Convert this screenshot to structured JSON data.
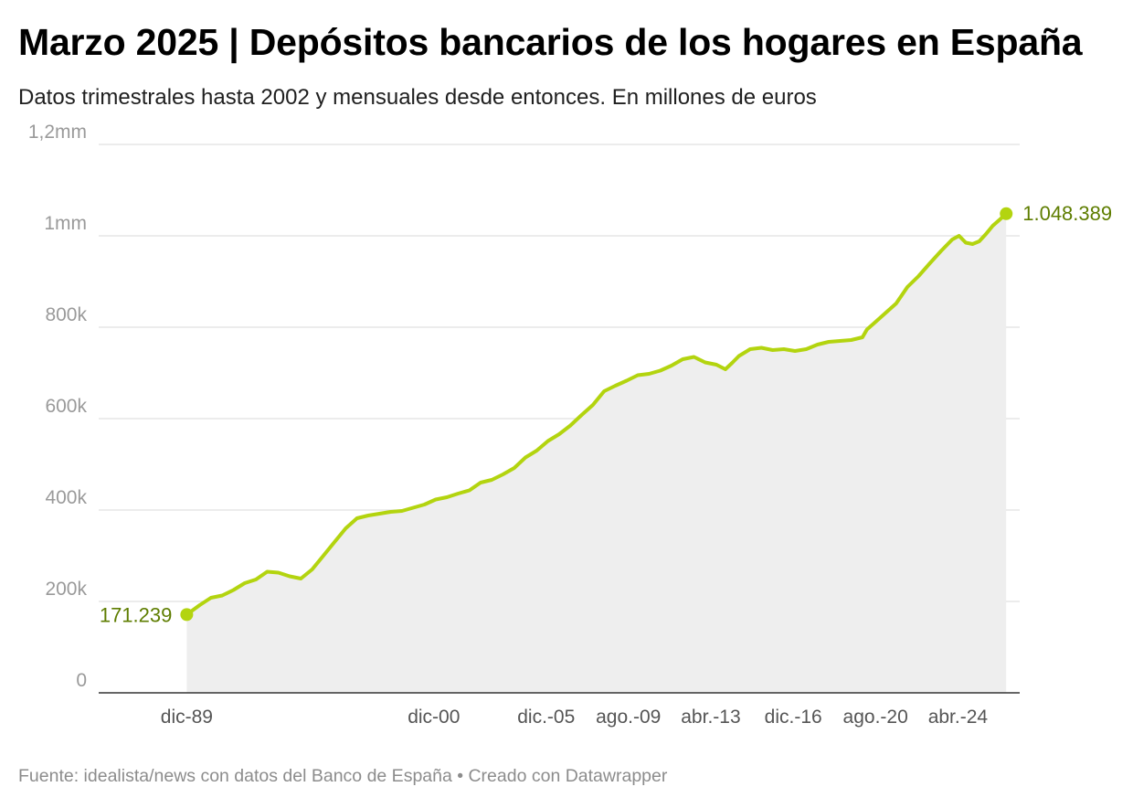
{
  "title": "Marzo 2025 | Depósitos bancarios de los hogares en España",
  "subtitle": "Datos trimestrales hasta 2002 y mensuales desde entonces. En millones de euros",
  "source": "Fuente: idealista/news con datos del Banco de España • Creado con Datawrapper",
  "colors": {
    "line": "#b3d40f",
    "area": "#eeeeee",
    "label": "#5e7d00",
    "grid": "#e0e0e0"
  },
  "chart_data": {
    "type": "area",
    "title": "Marzo 2025 | Depósitos bancarios de los hogares en España",
    "unit": "millones de euros",
    "ylim": [
      0,
      1200000
    ],
    "y_ticks": [
      {
        "value": 0,
        "label": "0"
      },
      {
        "value": 200000,
        "label": "200k"
      },
      {
        "value": 400000,
        "label": "400k"
      },
      {
        "value": 600000,
        "label": "600k"
      },
      {
        "value": 800000,
        "label": "800k"
      },
      {
        "value": 1000000,
        "label": "1mm"
      },
      {
        "value": 1200000,
        "label": "1,2mm"
      }
    ],
    "x_ticks": [
      {
        "x": 1989.92,
        "label": "dic-89"
      },
      {
        "x": 2000.92,
        "label": "dic-00"
      },
      {
        "x": 2005.92,
        "label": "dic.-05"
      },
      {
        "x": 2009.58,
        "label": "ago.-09"
      },
      {
        "x": 2013.25,
        "label": "abr.-13"
      },
      {
        "x": 2016.92,
        "label": "dic.-16"
      },
      {
        "x": 2020.58,
        "label": "ago.-20"
      },
      {
        "x": 2024.25,
        "label": "abr.-24"
      }
    ],
    "grid": true,
    "start_label": "171.239",
    "end_label": "1.048.389",
    "series": [
      {
        "values": [
          [
            1989.92,
            171239
          ],
          [
            1990.5,
            192000
          ],
          [
            1991.0,
            208000
          ],
          [
            1991.5,
            213000
          ],
          [
            1992.0,
            225000
          ],
          [
            1992.5,
            240000
          ],
          [
            1993.0,
            248000
          ],
          [
            1993.5,
            265000
          ],
          [
            1994.0,
            263000
          ],
          [
            1994.5,
            255000
          ],
          [
            1995.0,
            250000
          ],
          [
            1995.5,
            270000
          ],
          [
            1996.0,
            300000
          ],
          [
            1996.5,
            330000
          ],
          [
            1997.0,
            360000
          ],
          [
            1997.5,
            382000
          ],
          [
            1998.0,
            388000
          ],
          [
            1998.5,
            392000
          ],
          [
            1999.0,
            396000
          ],
          [
            1999.5,
            398000
          ],
          [
            2000.0,
            405000
          ],
          [
            2000.5,
            412000
          ],
          [
            2001.0,
            423000
          ],
          [
            2001.5,
            428000
          ],
          [
            2002.0,
            436000
          ],
          [
            2002.5,
            443000
          ],
          [
            2003.0,
            460000
          ],
          [
            2003.5,
            466000
          ],
          [
            2004.0,
            478000
          ],
          [
            2004.5,
            492000
          ],
          [
            2005.0,
            515000
          ],
          [
            2005.5,
            530000
          ],
          [
            2006.0,
            551000
          ],
          [
            2006.5,
            566000
          ],
          [
            2007.0,
            585000
          ],
          [
            2007.5,
            608000
          ],
          [
            2008.0,
            630000
          ],
          [
            2008.5,
            660000
          ],
          [
            2009.0,
            672000
          ],
          [
            2009.5,
            683000
          ],
          [
            2010.0,
            695000
          ],
          [
            2010.5,
            698000
          ],
          [
            2011.0,
            705000
          ],
          [
            2011.5,
            716000
          ],
          [
            2012.0,
            730000
          ],
          [
            2012.5,
            735000
          ],
          [
            2013.0,
            723000
          ],
          [
            2013.5,
            718000
          ],
          [
            2013.9,
            708000
          ],
          [
            2014.2,
            722000
          ],
          [
            2014.5,
            737000
          ],
          [
            2015.0,
            752000
          ],
          [
            2015.5,
            755000
          ],
          [
            2016.0,
            750000
          ],
          [
            2016.5,
            752000
          ],
          [
            2017.0,
            748000
          ],
          [
            2017.5,
            752000
          ],
          [
            2018.0,
            762000
          ],
          [
            2018.5,
            768000
          ],
          [
            2019.0,
            770000
          ],
          [
            2019.5,
            772000
          ],
          [
            2020.0,
            778000
          ],
          [
            2020.2,
            795000
          ],
          [
            2020.5,
            808000
          ],
          [
            2021.0,
            830000
          ],
          [
            2021.5,
            852000
          ],
          [
            2022.0,
            888000
          ],
          [
            2022.5,
            912000
          ],
          [
            2023.0,
            940000
          ],
          [
            2023.5,
            967000
          ],
          [
            2024.0,
            992000
          ],
          [
            2024.3,
            1000000
          ],
          [
            2024.6,
            985000
          ],
          [
            2024.9,
            982000
          ],
          [
            2025.2,
            988000
          ],
          [
            2025.5,
            1004000
          ],
          [
            2025.8,
            1022000
          ],
          [
            2026.1,
            1035000
          ],
          [
            2026.4,
            1048389
          ]
        ]
      }
    ]
  }
}
